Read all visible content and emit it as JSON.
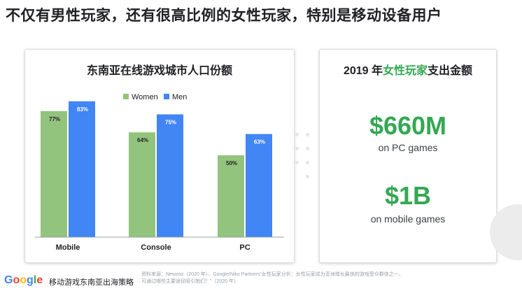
{
  "headline": "不仅有男性玩家，还有很高比例的女性玩家，特别是移动设备用户",
  "chart_data": {
    "type": "bar",
    "title": "东南亚在线游戏城市人口份额",
    "categories": [
      "Mobile",
      "Console",
      "PC"
    ],
    "series": [
      {
        "name": "Women",
        "values": [
          77,
          64,
          50
        ],
        "labels": [
          "77%",
          "64%",
          "50%"
        ],
        "color": "#93c47d"
      },
      {
        "name": "Men",
        "values": [
          83,
          75,
          63
        ],
        "labels": [
          "83%",
          "75%",
          "63%"
        ],
        "color": "#4285f4"
      }
    ],
    "ylim": [
      0,
      100
    ],
    "legend": "top-center",
    "grid": false
  },
  "stats": {
    "title_prefix": "2019 年",
    "title_highlight": "女性玩家",
    "title_suffix": "支出金额",
    "items": [
      {
        "value": "$660M",
        "label": "on PC games"
      },
      {
        "value": "$1B",
        "label": "on mobile games"
      }
    ]
  },
  "footer": {
    "logo": [
      "G",
      "o",
      "o",
      "g",
      "l",
      "e"
    ],
    "logo_colors": [
      "#4285f4",
      "#ea4335",
      "#fbbc05",
      "#4285f4",
      "#34a853",
      "#ea4335"
    ],
    "tagline": "移动游戏东南亚出海策略",
    "source_line1": "资料来源：Newzoo（2020 年）、Google/Niko Partners\"女性玩家分析：女性玩家成为亚洲增长最快的游戏受众群体之一、",
    "source_line2": "可通过哪些主要途径吸引她们？\"（2020 年）"
  }
}
